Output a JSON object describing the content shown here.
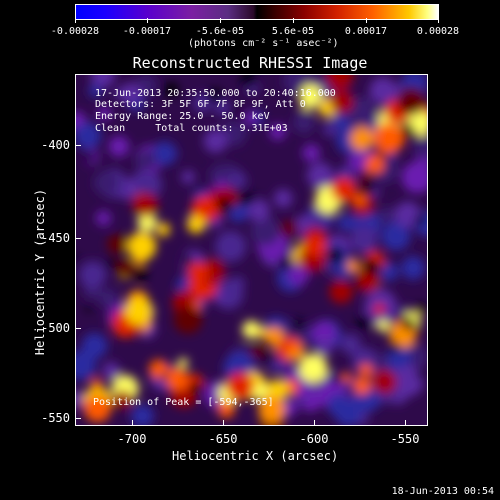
{
  "colorbar": {
    "ticks": [
      "-0.00028",
      "-0.00017",
      "-5.6e-05",
      "5.6e-05",
      "0.00017",
      "0.00028"
    ],
    "units": "(photons cm⁻² s⁻¹ asec⁻²)"
  },
  "title": "Reconstructed RHESSI Image",
  "info": {
    "time": "17-Jun-2013 20:35:50.000 to 20:40:16.000",
    "detectors": "Detectors: 3F 5F 6F 7F 8F 9F, Att 0",
    "energy": "Energy Range: 25.0 - 50.0 keV",
    "clean": "Clean     Total counts: 9.31E+03"
  },
  "peak": "Position of Peak = [-594,-365]",
  "axes": {
    "xtitle": "Heliocentric X (arcsec)",
    "ytitle": "Heliocentric Y (arcsec)",
    "xticks": [
      "-700",
      "-650",
      "-600",
      "-550"
    ],
    "yticks": [
      "-400",
      "-450",
      "-500",
      "-550"
    ]
  },
  "date": "18-Jun-2013 00:54",
  "colors": {
    "low": "#0000ff",
    "mid": "#000000",
    "high": "#ffffff"
  }
}
